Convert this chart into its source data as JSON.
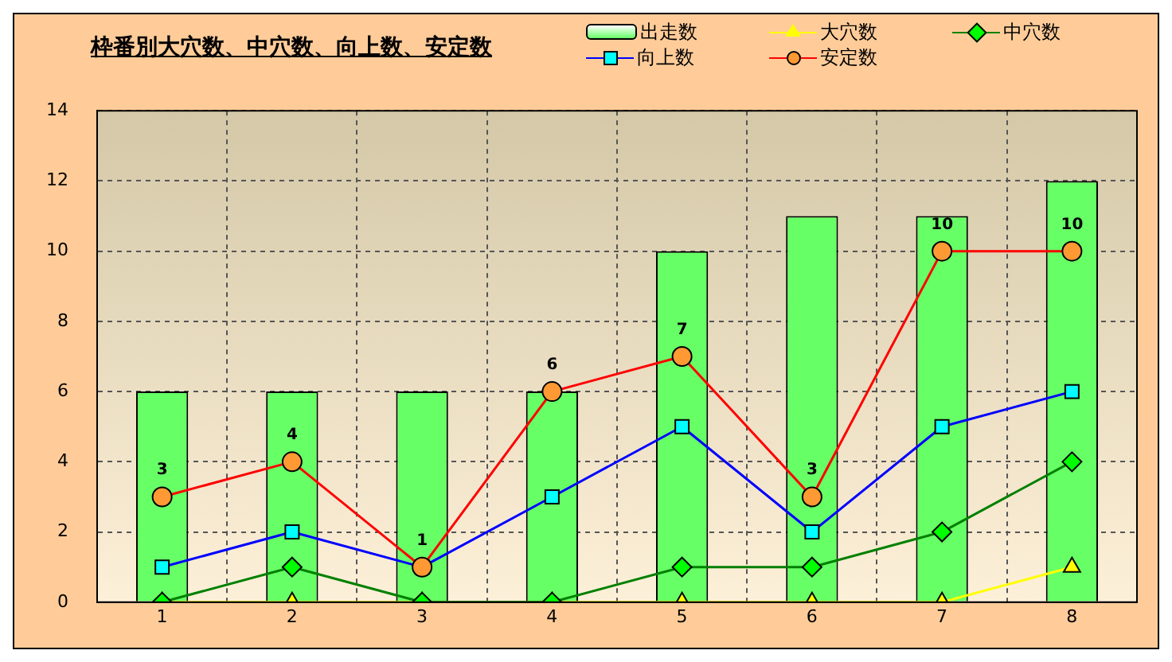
{
  "chart_data": {
    "type": "bar",
    "title": "枠番別大穴数、中穴数、向上数、安定数",
    "categories": [
      "1",
      "2",
      "3",
      "4",
      "5",
      "6",
      "7",
      "8"
    ],
    "series": [
      {
        "name": "出走数",
        "color": "#66ff66",
        "values": [
          6,
          6,
          6,
          6,
          10,
          11,
          11,
          12
        ]
      },
      {
        "name": "大穴数",
        "type": "line",
        "color": "#ffff00",
        "marker": "triangle",
        "values": [
          0,
          0,
          0,
          0,
          0,
          0,
          0,
          1
        ]
      },
      {
        "name": "中穴数",
        "type": "line",
        "color": "#008000",
        "marker": "diamond",
        "values": [
          0,
          1,
          0,
          0,
          1,
          1,
          2,
          4
        ]
      },
      {
        "name": "向上数",
        "type": "line",
        "color": "#0000ff",
        "marker": "square",
        "values": [
          1,
          2,
          1,
          3,
          5,
          2,
          5,
          6
        ]
      },
      {
        "name": "安定数",
        "type": "line",
        "color": "#ff0000",
        "marker": "circle",
        "values": [
          3,
          4,
          1,
          6,
          7,
          3,
          10,
          10
        ],
        "value_labels": [
          "3",
          "4",
          "1",
          "6",
          "7",
          "3",
          "10",
          "10"
        ]
      }
    ],
    "ylim": [
      0,
      14
    ],
    "yticks": [
      0,
      2,
      4,
      6,
      8,
      10,
      12,
      14
    ],
    "grid": true,
    "legend": "top right"
  }
}
